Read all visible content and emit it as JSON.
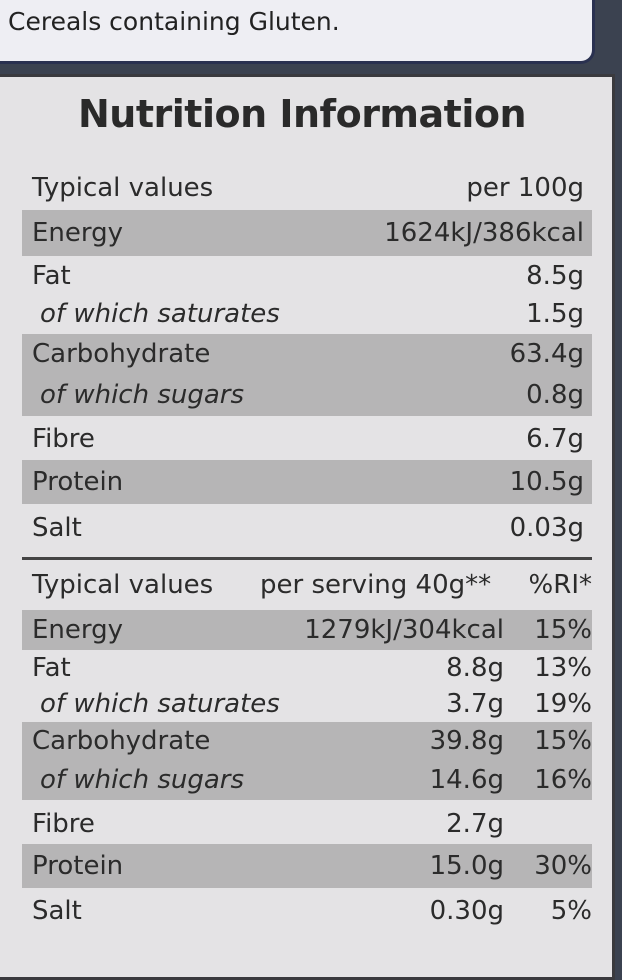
{
  "allergen_note": "Cereals containing Gluten.",
  "title": "Nutrition Information",
  "per_100g": {
    "header": [
      "Typical values",
      "per 100g"
    ],
    "rows": [
      [
        "Energy",
        "1624kJ/386kcal"
      ],
      [
        "Fat",
        "8.5g"
      ],
      [
        "of which saturates",
        "1.5g"
      ],
      [
        "Carbohydrate",
        "63.4g"
      ],
      [
        "of which sugars",
        "0.8g"
      ],
      [
        "Fibre",
        "6.7g"
      ],
      [
        "Protein",
        "10.5g"
      ],
      [
        "Salt",
        "0.03g"
      ]
    ]
  },
  "per_serving": {
    "header": [
      "Typical values",
      "per serving 40g**",
      "%RI*"
    ],
    "rows": [
      [
        "Energy",
        "1279kJ/304kcal",
        "15%"
      ],
      [
        "Fat",
        "8.8g",
        "13%"
      ],
      [
        "of which saturates",
        "3.7g",
        "19%"
      ],
      [
        "Carbohydrate",
        "39.8g",
        "15%"
      ],
      [
        "of which sugars",
        "14.6g",
        "16%"
      ],
      [
        "Fibre",
        "2.7g"
      ],
      [
        "Protein",
        "15.0g",
        "30%"
      ],
      [
        "Salt",
        "0.30g",
        "5%"
      ]
    ]
  }
}
